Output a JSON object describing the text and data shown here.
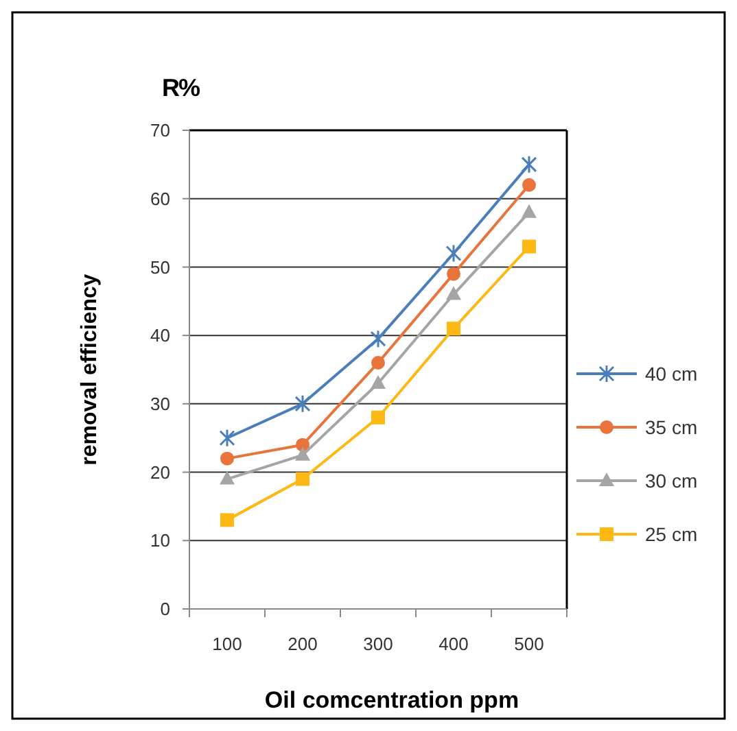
{
  "chart_data": {
    "type": "line",
    "title": "R%",
    "xlabel": "Oil comcentration ppm",
    "ylabel": "removal efficiency",
    "categories": [
      "100",
      "200",
      "300",
      "400",
      "500"
    ],
    "series": [
      {
        "name": "40 cm",
        "color": "#4a7ebb",
        "marker": "cross",
        "values": [
          25,
          30,
          39.5,
          52,
          65
        ]
      },
      {
        "name": "35 cm",
        "color": "#e8743b",
        "marker": "circle",
        "values": [
          22,
          24,
          36,
          49,
          62
        ]
      },
      {
        "name": "30 cm",
        "color": "#a5a5a5",
        "marker": "triangle",
        "values": [
          19,
          22.5,
          33,
          46,
          58
        ]
      },
      {
        "name": "25 cm",
        "color": "#fdb813",
        "marker": "square",
        "values": [
          13,
          19,
          28,
          41,
          53
        ]
      }
    ],
    "ylim": [
      0,
      70
    ],
    "yticks": [
      0,
      10,
      20,
      30,
      40,
      50,
      60,
      70
    ],
    "grid": "y",
    "legend": "right",
    "line_style": "solid"
  }
}
